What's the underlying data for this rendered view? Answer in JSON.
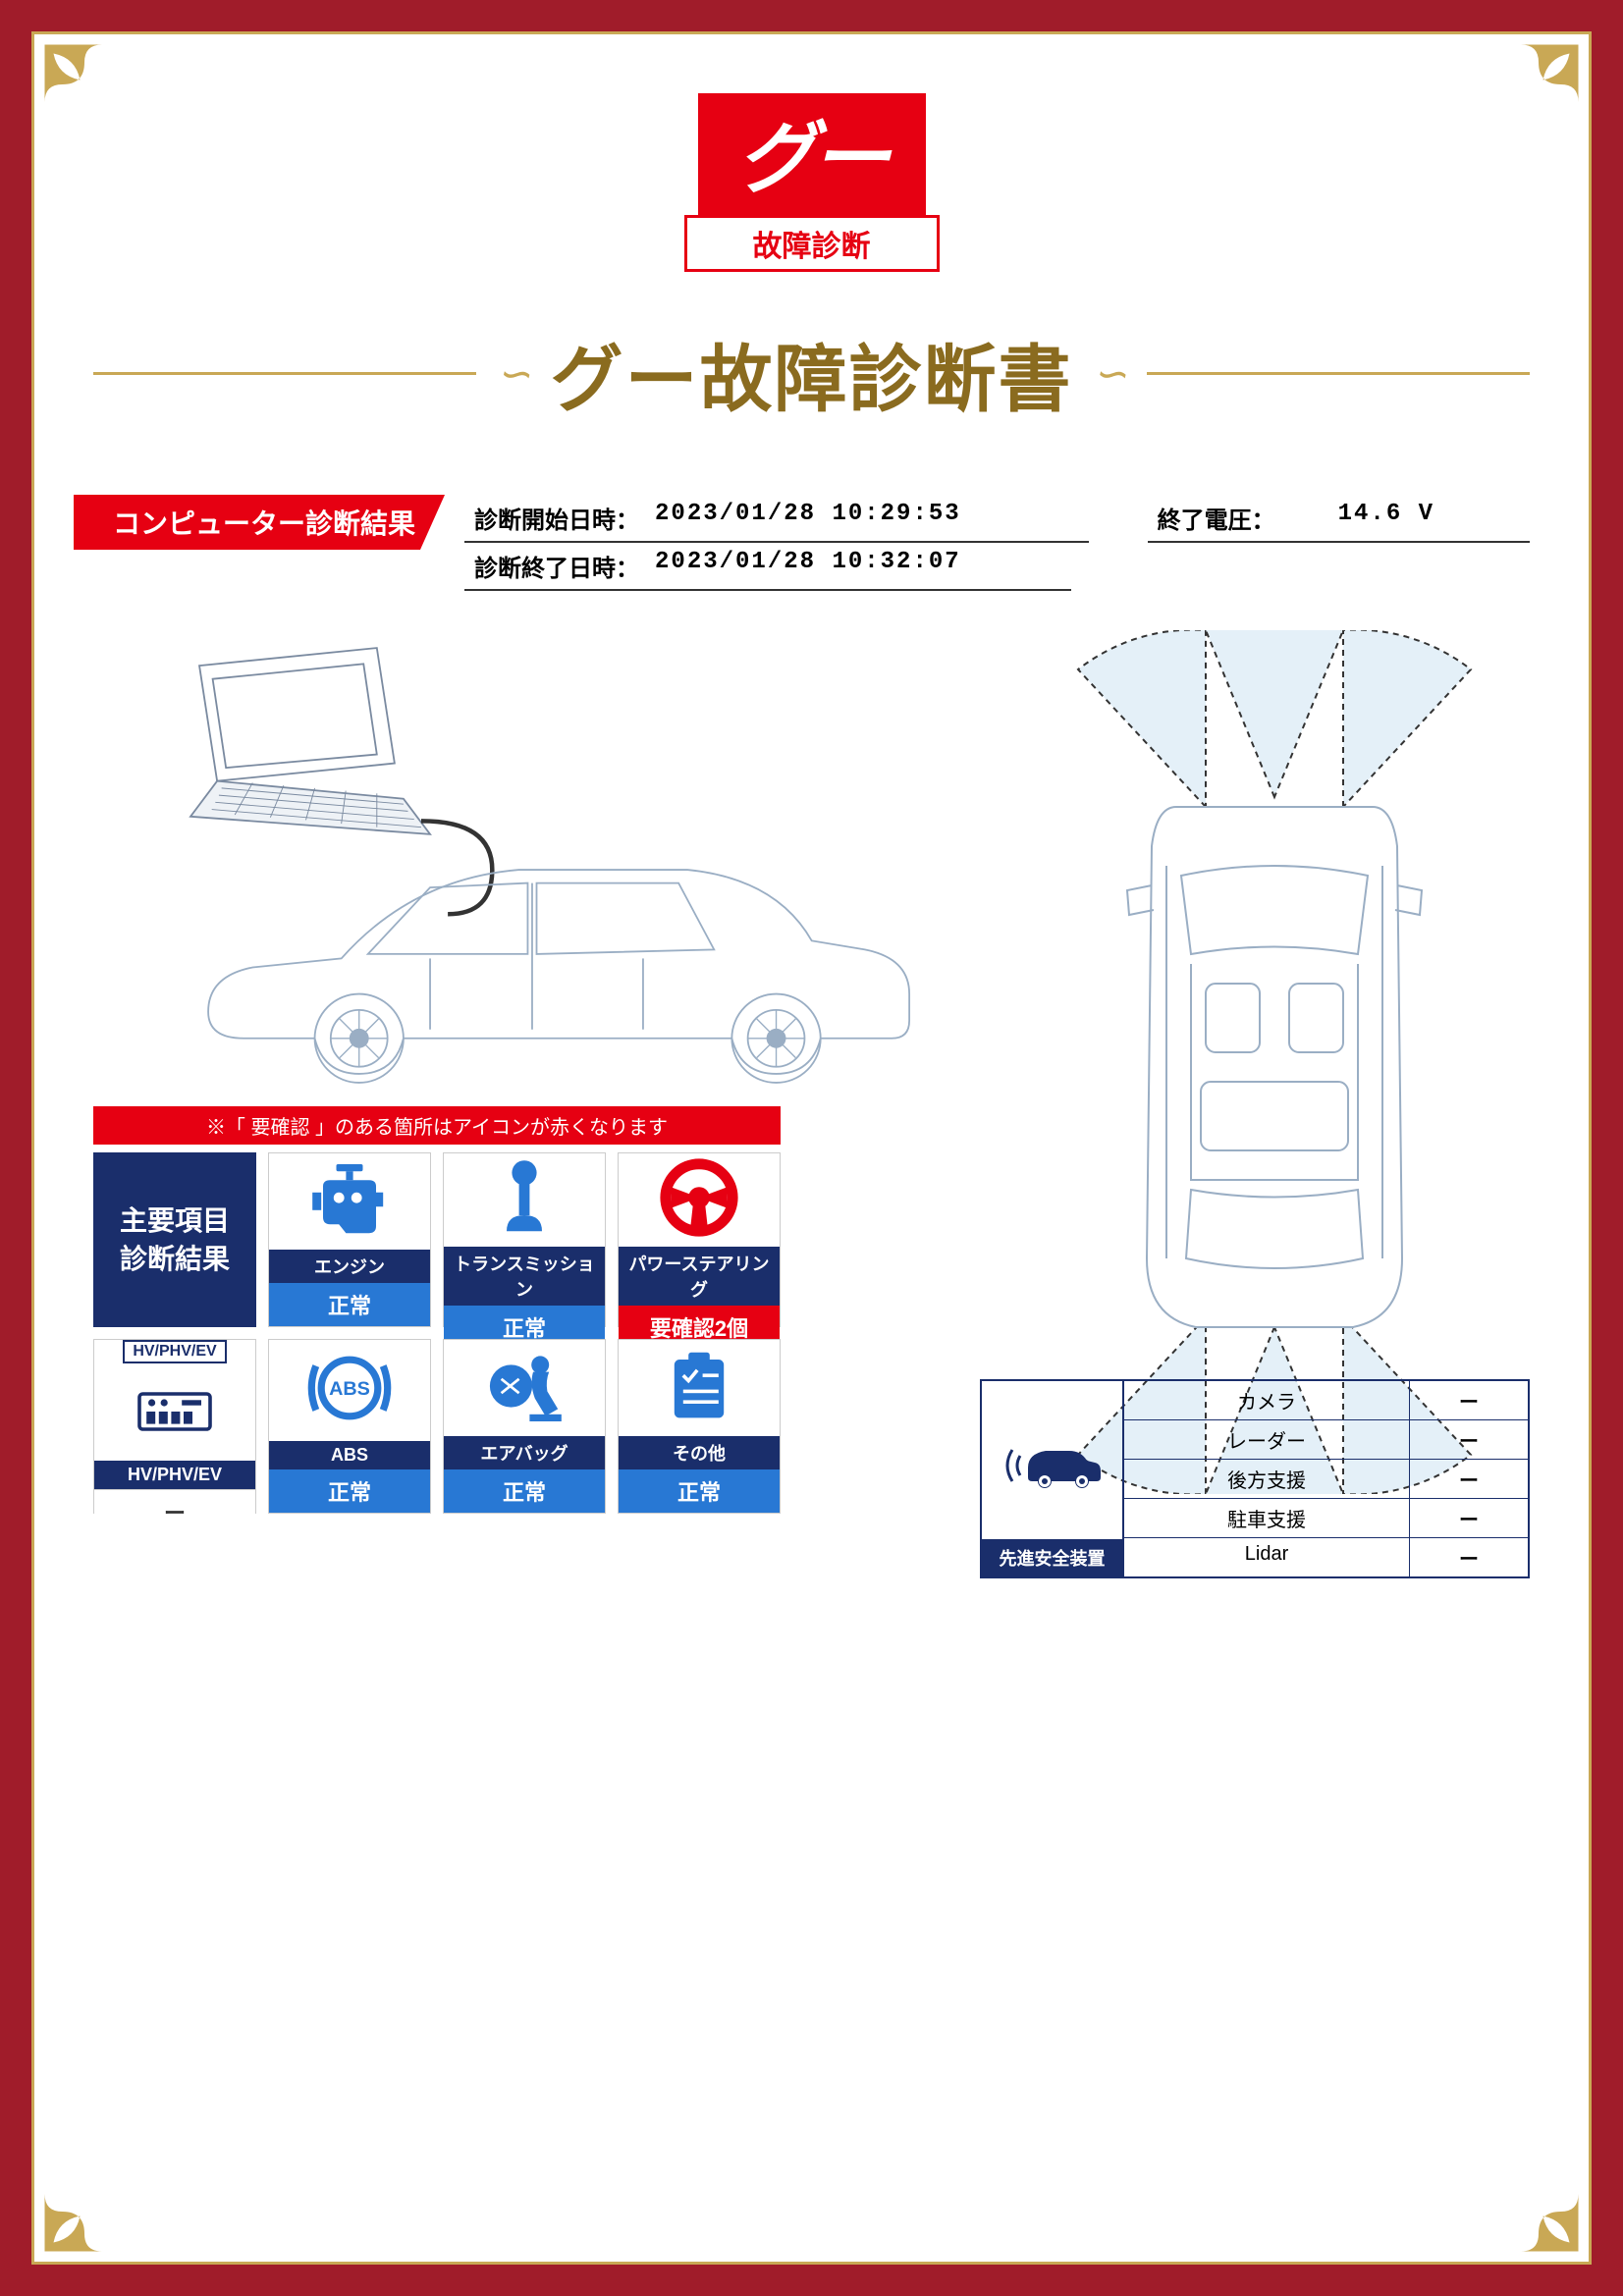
{
  "colors": {
    "frame_red": "#a01c2a",
    "brand_red": "#e60012",
    "gold": "#c9a855",
    "title_brown": "#8a6b1f",
    "navy": "#1a2e6b",
    "status_blue": "#2878d4",
    "white": "#ffffff"
  },
  "logo": {
    "brand": "グー",
    "subtitle": "故障診断"
  },
  "title": "グー故障診断書",
  "section_banner": "コンピューター診断結果",
  "meta": {
    "start_label": "診断開始日時：",
    "start_value": "2023/01/28 10:29:53",
    "end_label": "診断終了日時：",
    "end_value": "2023/01/28 10:32:07",
    "voltage_label": "終了電圧：",
    "voltage_value": "14.6 V"
  },
  "results": {
    "notice": "※「 要確認 」のある箇所はアイコンが赤くなります",
    "header_label": "主要項目\n診断結果",
    "cards": [
      {
        "id": "engine",
        "label": "エンジン",
        "status": "正常",
        "status_style": "normal",
        "icon_color": "#2878d4"
      },
      {
        "id": "transmission",
        "label": "トランスミッション",
        "status": "正常",
        "status_style": "normal",
        "icon_color": "#2878d4"
      },
      {
        "id": "steering",
        "label": "パワーステアリング",
        "status": "要確認2個",
        "status_style": "alert",
        "icon_color": "#e60012"
      },
      {
        "id": "hv",
        "label": "HV/PHV/EV",
        "status": "ー",
        "status_style": "blank",
        "icon_color": "#1a2e6b",
        "top_text": "HV/PHV/EV"
      },
      {
        "id": "abs",
        "label": "ABS",
        "status": "正常",
        "status_style": "normal",
        "icon_color": "#2878d4"
      },
      {
        "id": "airbag",
        "label": "エアバッグ",
        "status": "正常",
        "status_style": "normal",
        "icon_color": "#2878d4"
      },
      {
        "id": "other",
        "label": "その他",
        "status": "正常",
        "status_style": "normal",
        "icon_color": "#2878d4"
      }
    ]
  },
  "safety": {
    "header": "先進安全装置",
    "rows": [
      {
        "name": "カメラ",
        "value": "ー"
      },
      {
        "name": "レーダー",
        "value": "ー"
      },
      {
        "name": "後方支援",
        "value": "ー"
      },
      {
        "name": "駐車支援",
        "value": "ー"
      },
      {
        "name": "Lidar",
        "value": "ー"
      }
    ]
  },
  "diagram": {
    "car_outline_color": "#9aaec4",
    "sensor_fan_fill": "#d9e9f5",
    "sensor_fan_stroke": "#333333",
    "sensor_fan_opacity": 0.7
  }
}
